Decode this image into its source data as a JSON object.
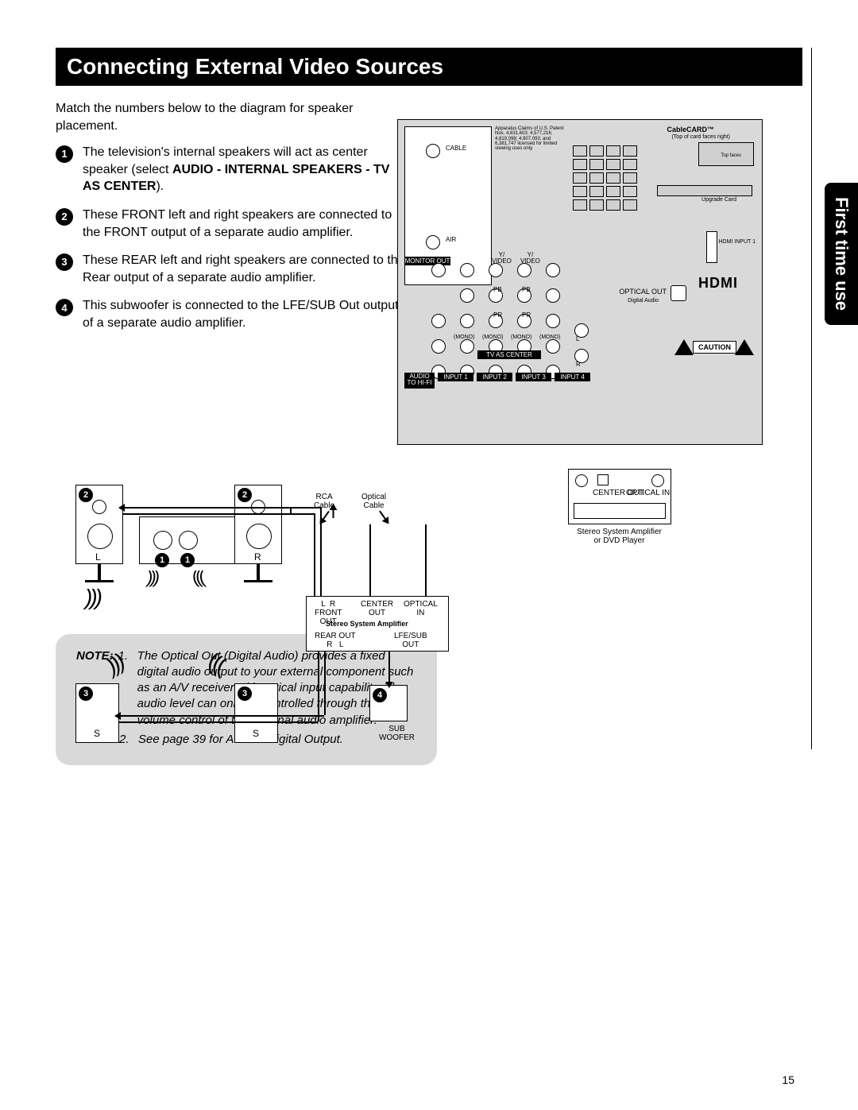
{
  "title": "Connecting External Video Sources",
  "sideTab": "First time use",
  "pageNumber": "15",
  "intro": "Match the numbers below to the diagram for speaker placement.",
  "items": [
    {
      "n": "1",
      "html": "The television's internal speakers will act as center speaker (select <b>AUDIO - INTERNAL SPEAKERS - TV AS CENTER</b>)."
    },
    {
      "n": "2",
      "html": "These FRONT left and right speakers are connected to the FRONT output of a separate audio amplifier."
    },
    {
      "n": "3",
      "html": "These REAR left and right speakers are connected to the Rear output of a separate audio amplifier."
    },
    {
      "n": "4",
      "html": "This subwoofer is connected to the LFE/SUB Out output of a separate audio amplifier."
    }
  ],
  "note": {
    "label": "NOTE:",
    "entries": [
      {
        "n": "1.",
        "text": "The Optical Out (Digital Audio) provides a fixed digital audio output to your external component such as an A/V receiver with optical input capability. The audio level can only be controlled through the volume control of the external audio amplifier."
      },
      {
        "n": "2.",
        "text": "See page 39 for AUDIO-Digital Output."
      }
    ]
  },
  "diagram": {
    "rcaLabel": "RCA\nCable",
    "opticalLabel": "Optical\nCable",
    "ampBox": {
      "title": "Stereo System Amplifier",
      "topLeft": "L  R\nFRONT\nOUT",
      "topCenter": "CENTER\nOUT",
      "topRight": "OPTICAL\nIN",
      "botLeft": "REAR OUT\nR   L",
      "botRight": "LFE/SUB\nOUT"
    },
    "subLabel": "SUB\nWOOFER",
    "receiverLabel": "Stereo System Amplifier\nor DVD Player",
    "recvCenter": "CENTER\nOUT",
    "recvOptical": "OPTICAL\nIN",
    "speakerLabels": {
      "L": "L",
      "R": "R",
      "S": "S"
    }
  },
  "panel": {
    "cable": "CABLE",
    "air": "AIR",
    "monitorOut": "MONITOR OUT",
    "audioHifi": "AUDIO\nTO HI-FI",
    "inputs": [
      "INPUT 1",
      "INPUT 2",
      "INPUT 3",
      "INPUT 4"
    ],
    "tvAsCenter": "TV AS CENTER",
    "opticalOut": "OPTICAL OUT",
    "digitalAudio": "Digital Audio",
    "cablecard": "CableCARD™",
    "cablecardSub": "(Top of card faces right)",
    "upgrade": "Upgrade Card",
    "hdmiInput": "HDMI INPUT 1",
    "hdmi": "HDMI",
    "caution": "CAUTION",
    "patent": "Apparatus Claims of U.S. Patent Nos. 4,631,603; 4,577,216; 4,819,098; 4,907,093; and 6,381,747 licensed for limited viewing uses only.",
    "jackLabels": {
      "yvideo": "Y/\nVIDEO",
      "pb": "PB",
      "pr": "PR",
      "mono": "(MONO)",
      "l": "L",
      "r": "R",
      "topfaces": "Top faces"
    }
  }
}
